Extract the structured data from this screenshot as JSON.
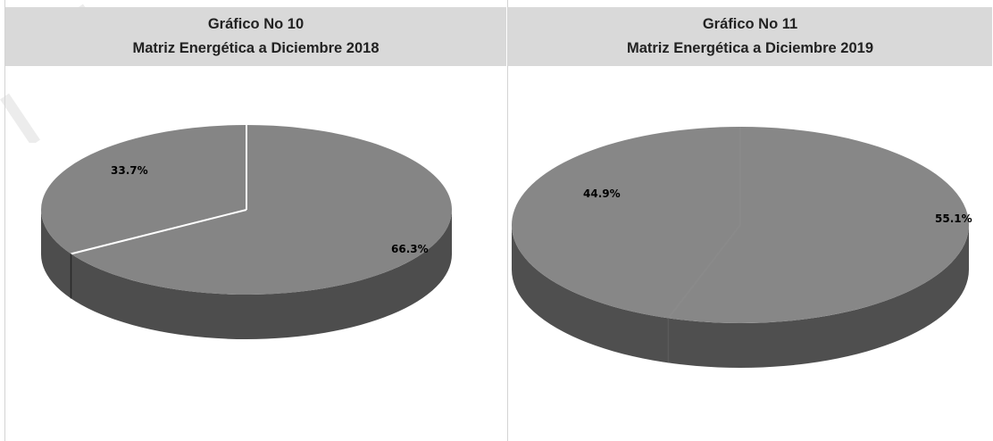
{
  "chart_data": [
    {
      "type": "pie",
      "title": "Gráfico No 10",
      "subtitle": "Matriz Energética a Diciembre 2018",
      "slices": [
        {
          "value": 66.3,
          "label": "66.3%"
        },
        {
          "value": 33.7,
          "label": "33.7%"
        }
      ],
      "colors": {
        "top": "#858585",
        "side": "#4d4d4d",
        "edge": "#ffffff"
      },
      "legend": "none"
    },
    {
      "type": "pie",
      "title": "Gráfico No 11",
      "subtitle": "Matriz Energética a Diciembre 2019",
      "slices": [
        {
          "value": 55.1,
          "label": "55.1%"
        },
        {
          "value": 44.9,
          "label": "44.9%"
        }
      ],
      "colors": {
        "top": "#878787",
        "side": "#4f4f4f",
        "edge": "#8a8a8a"
      },
      "legend": "none"
    }
  ]
}
